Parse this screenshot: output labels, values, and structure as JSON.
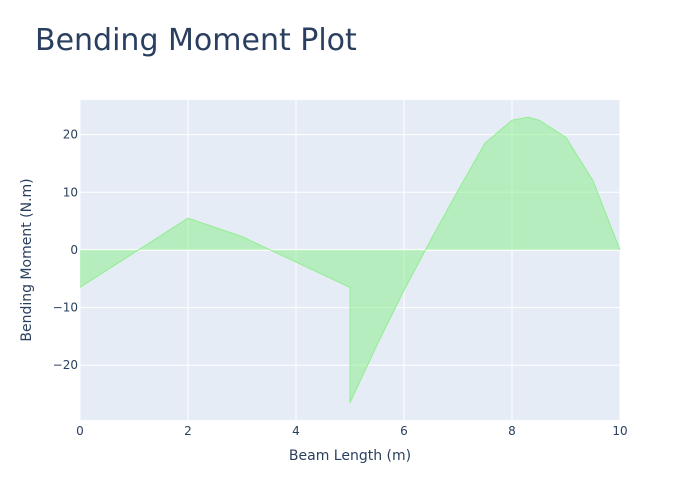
{
  "chart_data": {
    "type": "area",
    "title": "Bending Moment Plot",
    "xlabel": "Beam Length (m)",
    "ylabel": "Bending Moment (N.m)",
    "xlim": [
      0,
      10
    ],
    "ylim": [
      -29.5,
      26
    ],
    "xticks": [
      0,
      2,
      4,
      6,
      8,
      10
    ],
    "yticks": [
      -20,
      -10,
      0,
      10,
      20
    ],
    "ytick_labels": [
      "−20",
      "−10",
      "0",
      "10",
      "20"
    ],
    "grid": true,
    "legend": "none",
    "colors": {
      "plot_bg": "#e5ecf6",
      "grid": "#ffffff",
      "fill": "rgba(144,238,144,0.55)",
      "line": "#90ee90",
      "text": "#2a3f5f"
    },
    "series": [
      {
        "x": [
          0,
          1,
          2,
          3,
          4,
          5,
          5,
          5.5,
          6,
          6.5,
          7,
          7.5,
          8,
          8.3,
          8.5,
          9,
          9.5,
          10
        ],
        "y": [
          -6.5,
          -0.5,
          5.5,
          2.3,
          -2.1,
          -6.5,
          -26.5,
          -16.5,
          -7.0,
          1.8,
          10.3,
          18.5,
          22.5,
          23.0,
          22.5,
          19.5,
          12.0,
          0
        ]
      }
    ]
  }
}
